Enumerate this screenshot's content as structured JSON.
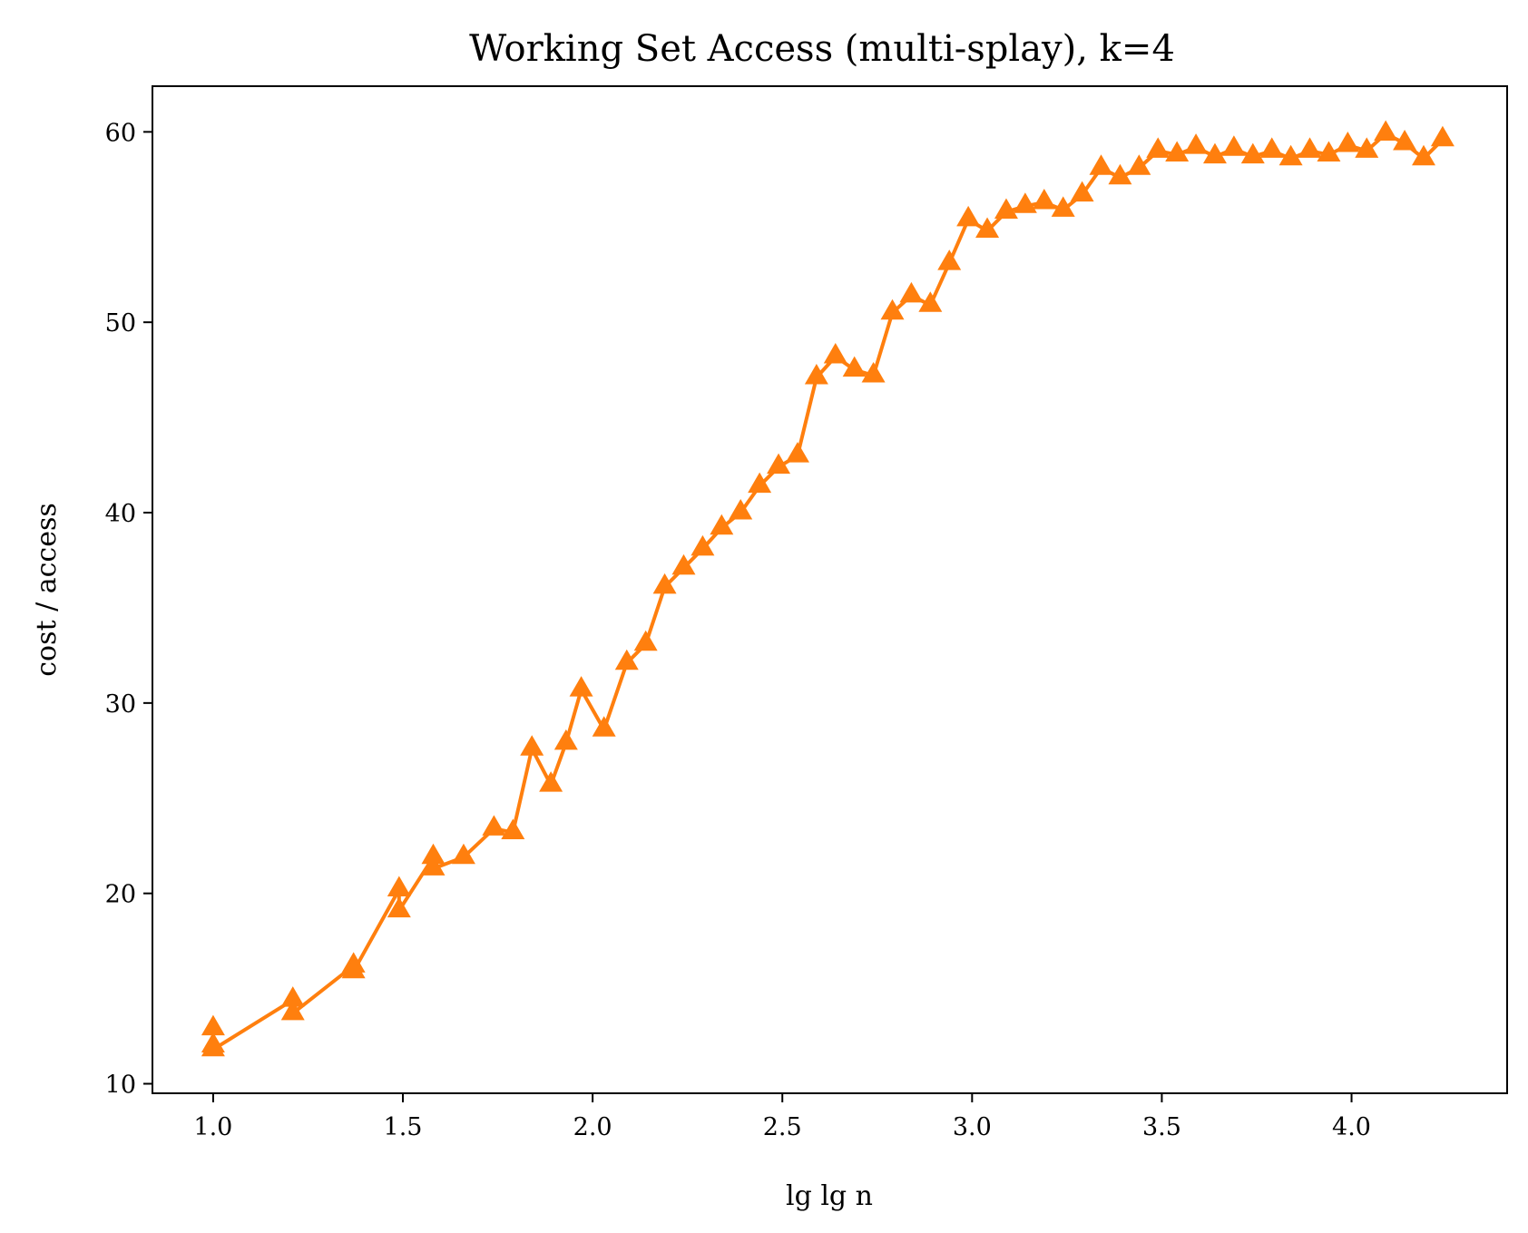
{
  "chart_data": {
    "type": "line",
    "title": "Working Set Access (multi-splay), k=4",
    "xlabel": "lg lg n",
    "ylabel": "cost / access",
    "xlim": [
      0.84,
      4.41
    ],
    "ylim": [
      9.5,
      62.4
    ],
    "xticks": [
      1.0,
      1.5,
      2.0,
      2.5,
      3.0,
      3.5,
      4.0
    ],
    "xtick_labels": [
      "1.0",
      "1.5",
      "2.0",
      "2.5",
      "3.0",
      "3.5",
      "4.0"
    ],
    "yticks": [
      10,
      20,
      30,
      40,
      50,
      60
    ],
    "ytick_labels": [
      "10",
      "20",
      "30",
      "40",
      "50",
      "60"
    ],
    "grid": false,
    "series": [
      {
        "color": "#ff7f0e",
        "marker": "triangle-up",
        "x": [
          1.0,
          1.0,
          1.0,
          1.21,
          1.21,
          1.37,
          1.37,
          1.49,
          1.49,
          1.58,
          1.58,
          1.66,
          1.74,
          1.79,
          1.84,
          1.89,
          1.93,
          1.97,
          2.03,
          2.09,
          2.14,
          2.19,
          2.24,
          2.29,
          2.34,
          2.39,
          2.44,
          2.49,
          2.54,
          2.59,
          2.64,
          2.69,
          2.74,
          2.79,
          2.84,
          2.89,
          2.94,
          2.99,
          3.04,
          3.09,
          3.14,
          3.19,
          3.24,
          3.29,
          3.34,
          3.39,
          3.44,
          3.49,
          3.54,
          3.59,
          3.64,
          3.69,
          3.74,
          3.79,
          3.84,
          3.89,
          3.94,
          3.99,
          4.04,
          4.09,
          4.14,
          4.19,
          4.24
        ],
        "y": [
          12.9,
          12.0,
          11.8,
          14.4,
          13.7,
          16.2,
          15.9,
          20.2,
          19.1,
          21.9,
          21.3,
          21.9,
          23.4,
          23.2,
          27.6,
          25.7,
          27.9,
          30.7,
          28.6,
          32.1,
          33.1,
          36.1,
          37.1,
          38.1,
          39.2,
          40.0,
          41.4,
          42.4,
          43.0,
          47.1,
          48.2,
          47.5,
          47.2,
          50.5,
          51.4,
          50.9,
          53.1,
          55.4,
          54.8,
          55.8,
          56.1,
          56.3,
          55.9,
          56.7,
          58.1,
          57.6,
          58.1,
          59.0,
          58.8,
          59.2,
          58.7,
          59.1,
          58.7,
          59.0,
          58.6,
          59.0,
          58.8,
          59.3,
          59.0,
          59.9,
          59.4,
          58.6,
          59.6
        ]
      }
    ]
  }
}
